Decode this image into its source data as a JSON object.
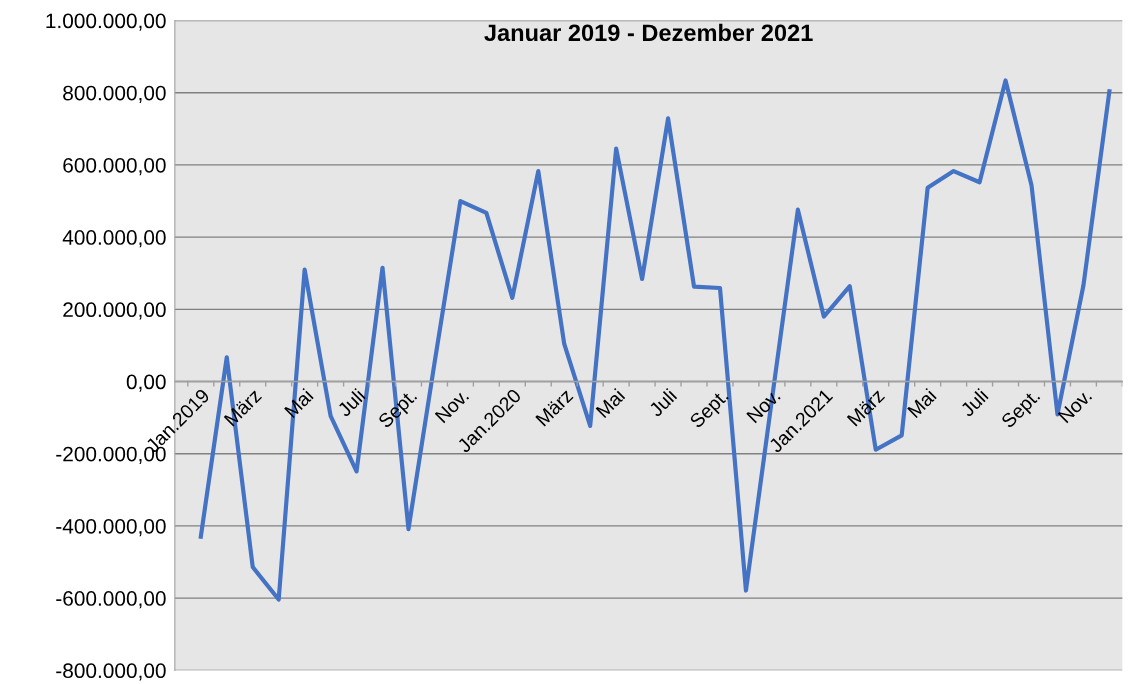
{
  "chart_data": {
    "type": "line",
    "title": "Januar 2019 - Dezember 2021",
    "categories": [
      "Jan.2019",
      null,
      "März",
      null,
      "Mai",
      null,
      "Juli",
      null,
      "Sept.",
      null,
      "Nov.",
      null,
      "Jan.2020",
      null,
      "März",
      null,
      "Mai",
      null,
      "Juli",
      null,
      "Sept.",
      null,
      "Nov.",
      null,
      "Jan.2021",
      null,
      "März",
      null,
      "Mai",
      null,
      "Juli",
      null,
      "Sept.",
      null,
      "Nov.",
      null
    ],
    "series": [
      {
        "color": "#4472c4",
        "values": [
          -430000,
          67000,
          -514000,
          -604000,
          310000,
          -95000,
          -249000,
          315000,
          -409000,
          50000,
          500000,
          467000,
          232000,
          583000,
          104000,
          -123000,
          645000,
          284000,
          729000,
          263000,
          259000,
          -579000,
          -50000,
          476000,
          180000,
          264000,
          -189000,
          -149000,
          537000,
          583000,
          552000,
          834000,
          544000,
          -91000,
          266000,
          804000
        ]
      }
    ],
    "ylim": [
      -800000,
      1000000
    ],
    "yticks": [
      {
        "value": -800000,
        "label": "-800.000,00"
      },
      {
        "value": -600000,
        "label": "-600.000,00"
      },
      {
        "value": -400000,
        "label": "-400.000,00"
      },
      {
        "value": -200000,
        "label": "-200.000,00"
      },
      {
        "value": 0,
        "label": "0,00"
      },
      {
        "value": 200000,
        "label": "200.000,00"
      },
      {
        "value": 400000,
        "label": "400.000,00"
      },
      {
        "value": 600000,
        "label": "600.000,00"
      },
      {
        "value": 800000,
        "label": "800.000,00"
      },
      {
        "value": 1000000,
        "label": "1.000.000,00"
      }
    ],
    "grid": "y",
    "legend": false,
    "marker": "none",
    "line_style": "solid"
  }
}
